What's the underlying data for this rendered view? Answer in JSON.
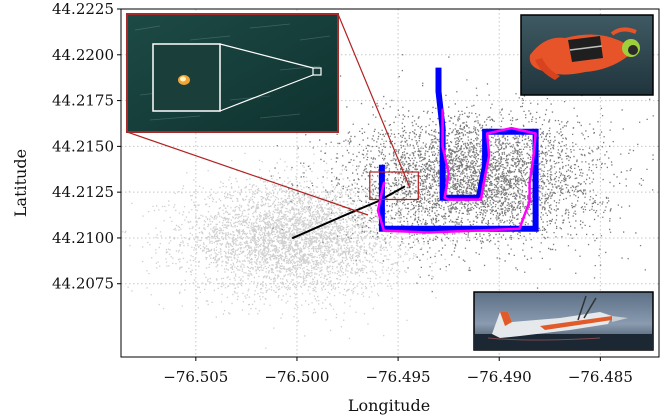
{
  "chart_data": {
    "type": "scatter",
    "xlabel": "Longitude",
    "ylabel": "Latitude",
    "xlim": [
      -76.5087,
      -76.4821
    ],
    "ylim": [
      44.2035,
      44.2225
    ],
    "x_ticks": [
      -76.505,
      -76.5,
      -76.495,
      -76.49,
      -76.485
    ],
    "x_tick_labels": [
      "−76.505",
      "−76.500",
      "−76.495",
      "−76.490",
      "−76.485"
    ],
    "y_ticks": [
      44.2075,
      44.21,
      44.2125,
      44.215,
      44.2175,
      44.22,
      44.2225
    ],
    "y_tick_labels": [
      "44.2075",
      "44.2100",
      "44.2125",
      "44.2150",
      "44.2175",
      "44.2200",
      "44.2225"
    ],
    "grid": true,
    "grid_style": "dotted",
    "clouds": [
      {
        "role": "light-gray-scatter",
        "color": "#cfcfcf",
        "center": [
          -76.5002,
          44.21
        ],
        "spread": [
          0.0027,
          0.00155
        ],
        "count": 4200
      },
      {
        "role": "dark-gray-scatter",
        "color": "#7a7a7a",
        "center": [
          -76.4912,
          44.2133
        ],
        "spread": [
          0.0031,
          0.00175
        ],
        "count": 4200
      }
    ],
    "series": [
      {
        "role": "black-track",
        "color": "#000000",
        "width": 2,
        "x": [
          -76.5002,
          -76.4975,
          -76.496,
          -76.4947
        ],
        "y": [
          44.21,
          44.2113,
          44.212,
          44.2128
        ]
      },
      {
        "role": "blue-path",
        "color": "#0000ff",
        "width": 6,
        "segments": [
          {
            "x": [
              -76.4958,
              -76.4958,
              -76.4958,
              -76.4933,
              -76.4915,
              -76.4898,
              -76.4882,
              -76.4882
            ],
            "y": [
              44.214,
              44.213,
              44.2105,
              44.2105,
              44.2105,
              44.2105,
              44.2105,
              44.214
            ]
          },
          {
            "x": [
              -76.4882,
              -76.4882,
              -76.4907,
              -76.4907,
              -76.491
            ],
            "y": [
              44.214,
              44.2158,
              44.2158,
              44.214,
              44.2122
            ]
          },
          {
            "x": [
              -76.491,
              -76.4928,
              -76.4928,
              -76.493,
              -76.493
            ],
            "y": [
              44.2122,
              44.2122,
              44.216,
              44.218,
              44.2193
            ]
          }
        ]
      },
      {
        "role": "magenta-path",
        "color": "#ff00ff",
        "width": 2.5,
        "x": [
          -76.4928,
          -76.4928,
          -76.4925,
          -76.4927,
          -76.4925,
          -76.4917,
          -76.4909,
          -76.4908,
          -76.4905,
          -76.4906,
          -76.4894,
          -76.4882,
          -76.4883,
          -76.4885,
          -76.4885,
          -76.489,
          -76.4912,
          -76.4935,
          -76.4957,
          -76.496,
          -76.4957
        ],
        "y": [
          44.217,
          44.215,
          44.2135,
          44.2122,
          44.2121,
          44.2121,
          44.2121,
          44.2128,
          44.2145,
          44.2157,
          44.216,
          44.2157,
          44.2145,
          44.213,
          44.212,
          44.2105,
          44.2104,
          44.2103,
          44.2104,
          44.2115,
          44.213
        ]
      }
    ],
    "zoom_box": {
      "x": [
        -76.4964,
        -76.494
      ],
      "y": [
        44.2121,
        44.2136
      ],
      "color": "#b22222"
    }
  },
  "insets": {
    "aerial_view": {
      "border_color": "#a52a2a",
      "water_color": "#17403b",
      "frame_color": "#ffffff"
    },
    "person_photo": {
      "subject": "person in orange survival suit floating in water"
    },
    "aircraft_photo": {
      "subject": "fixed-wing UAV with orange accents over water"
    }
  }
}
